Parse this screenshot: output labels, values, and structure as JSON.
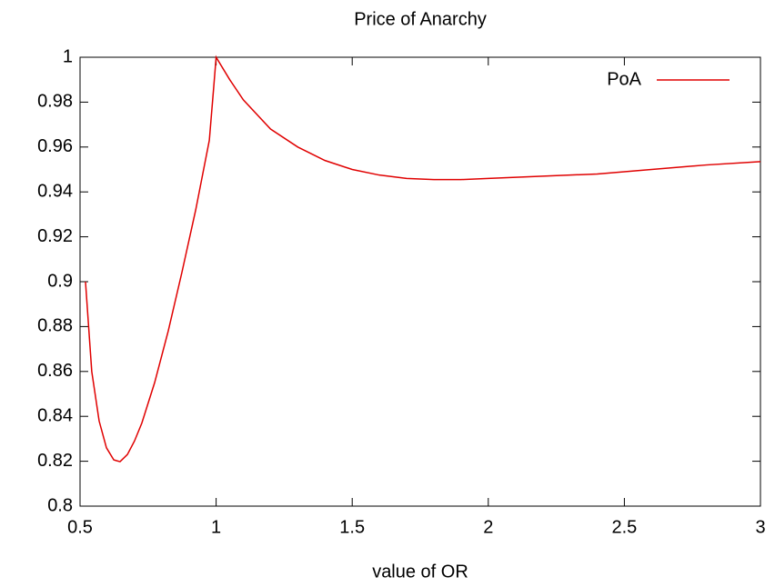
{
  "chart_data": {
    "type": "line",
    "title": "Price of Anarchy",
    "xlabel": "value of OR",
    "x": [
      0.52,
      0.543,
      0.57,
      0.597,
      0.624,
      0.647,
      0.674,
      0.7,
      0.727,
      0.774,
      0.824,
      0.874,
      0.925,
      0.975,
      0.99,
      1.0,
      1.05,
      1.1,
      1.2,
      1.3,
      1.4,
      1.5,
      1.6,
      1.7,
      1.8,
      1.9,
      2.0,
      2.2,
      2.4,
      2.6,
      2.8,
      3.0
    ],
    "series": [
      {
        "name": "PoA",
        "color": "#e00000",
        "values": [
          0.9,
          0.86,
          0.838,
          0.826,
          0.8206,
          0.8198,
          0.823,
          0.829,
          0.837,
          0.855,
          0.878,
          0.904,
          0.932,
          0.963,
          0.985,
          1.0,
          0.99,
          0.981,
          0.968,
          0.96,
          0.954,
          0.95,
          0.9475,
          0.946,
          0.9455,
          0.9455,
          0.946,
          0.947,
          0.948,
          0.95,
          0.952,
          0.9535
        ]
      }
    ],
    "xlim": [
      0.5,
      3
    ],
    "xticks": [
      0.5,
      1,
      1.5,
      2,
      2.5,
      3
    ],
    "ylim": [
      0.8,
      1
    ],
    "yticks": [
      0.8,
      0.82,
      0.84,
      0.86,
      0.88,
      0.9,
      0.92,
      0.94,
      0.96,
      0.98,
      1
    ],
    "legend": "top-right"
  }
}
